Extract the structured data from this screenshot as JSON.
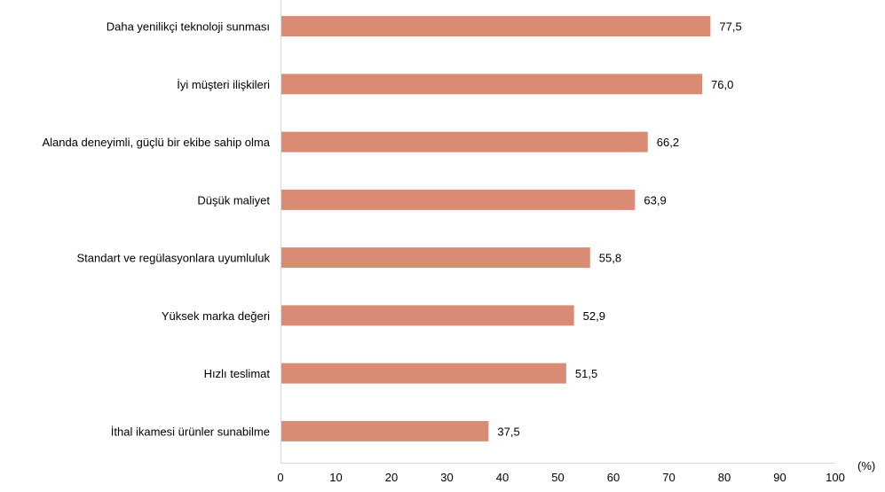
{
  "chart_data": {
    "type": "bar",
    "orientation": "horizontal",
    "categories": [
      "Daha yenilikçi teknoloji sunması",
      "İyi müşteri ilişkileri",
      "Alanda deneyimli, güçlü bir ekibe sahip olma",
      "Düşük maliyet",
      "Standart ve regülasyonlara uyumluluk",
      "Yüksek marka değeri",
      "Hızlı teslimat",
      "İthal ikamesi ürünler sunabilme"
    ],
    "values": [
      77.5,
      76.0,
      66.2,
      63.9,
      55.8,
      52.9,
      51.5,
      37.5
    ],
    "data_labels": [
      "77,5",
      "76,0",
      "66,2",
      "63,9",
      "55,8",
      "52,9",
      "51,5",
      "37,5"
    ],
    "x_ticks": [
      "0",
      "10",
      "20",
      "30",
      "40",
      "50",
      "60",
      "70",
      "80",
      "90",
      "100"
    ],
    "xlim": [
      0,
      100
    ],
    "xlabel": "(%)",
    "title": "",
    "grid": false,
    "bar_color": "#d98b74",
    "axis_color": "#d9d9d9"
  }
}
